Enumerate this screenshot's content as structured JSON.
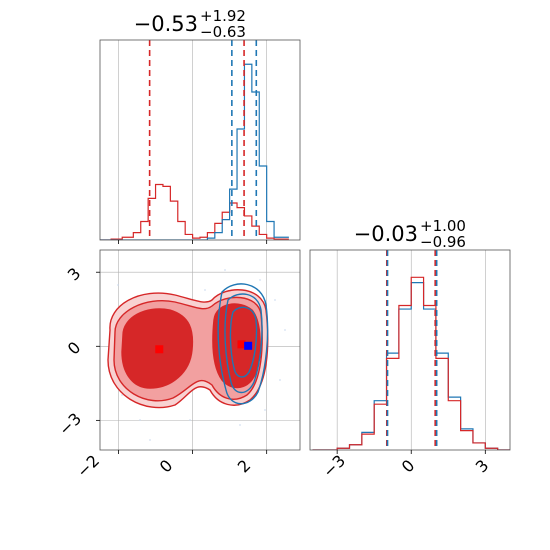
{
  "colors": {
    "blue": "#1f77b4",
    "red": "#d62728",
    "red_fill_light": "#f2a0a0",
    "grid": "#b0b0b0"
  },
  "chart_data": [
    {
      "type": "line",
      "panel": "top-left marginal histogram",
      "title": {
        "main": "−0.53",
        "sup": "+1.92",
        "sub": "−0.63"
      },
      "x": [
        -2.5,
        -2.2,
        -1.9,
        -1.6,
        -1.4,
        -1.2,
        -1.0,
        -0.8,
        -0.6,
        -0.4,
        -0.2,
        0.0,
        0.2,
        0.4,
        0.6,
        0.8,
        1.0,
        1.2,
        1.4,
        1.6,
        1.8,
        2.0,
        2.2,
        2.6
      ],
      "series": [
        {
          "color": "red",
          "values": [
            0,
            1,
            3,
            8,
            20,
            45,
            60,
            58,
            42,
            20,
            6,
            2,
            3,
            8,
            18,
            30,
            40,
            35,
            26,
            15,
            6,
            2,
            1,
            0
          ]
        },
        {
          "color": "blue",
          "values": [
            0,
            0,
            0,
            0,
            0,
            0,
            0,
            0,
            0,
            0,
            0,
            0,
            0,
            2,
            8,
            22,
            55,
            120,
            190,
            160,
            80,
            20,
            3,
            0
          ]
        }
      ],
      "quantile_lines": {
        "red": [
          -1.16,
          1.39
        ],
        "blue": [
          1.06,
          1.72
        ]
      },
      "grid": true
    },
    {
      "type": "scatter",
      "panel": "bottom-left 2D density contours",
      "x_ticks": [
        "−2",
        "0",
        "2"
      ],
      "y_ticks": [
        "3",
        "0",
        "−3"
      ],
      "xlim": [
        -2.5,
        2.9
      ],
      "ylim": [
        -4.2,
        3.9
      ],
      "markers": [
        {
          "color": "red",
          "x": -0.9,
          "y": -0.12
        },
        {
          "color": "red",
          "x": 1.32,
          "y": 0.08
        },
        {
          "color": "blue",
          "x": 1.5,
          "y": 0.02
        }
      ],
      "grid": true
    },
    {
      "type": "line",
      "panel": "bottom-right marginal histogram",
      "title": {
        "main": "−0.03",
        "sup": "+1.00",
        "sub": "−0.96"
      },
      "x_ticks": [
        "−3",
        "0",
        "3"
      ],
      "x": [
        -4.0,
        -3.5,
        -3.0,
        -2.5,
        -2.0,
        -1.5,
        -1.0,
        -0.5,
        0.0,
        0.5,
        1.0,
        1.5,
        2.0,
        2.5,
        3.0,
        3.5,
        4.0
      ],
      "series": [
        {
          "color": "blue",
          "values": [
            0,
            0,
            1,
            3,
            10,
            28,
            55,
            80,
            95,
            80,
            55,
            30,
            12,
            4,
            1,
            0,
            0
          ]
        },
        {
          "color": "red",
          "values": [
            0,
            0,
            1,
            3,
            9,
            26,
            52,
            82,
            98,
            82,
            52,
            28,
            11,
            4,
            1,
            0,
            0
          ]
        }
      ],
      "quantile_lines": {
        "red": [
          -0.99,
          0.97
        ],
        "blue": [
          -0.96,
          1.03
        ]
      },
      "grid": true
    }
  ]
}
